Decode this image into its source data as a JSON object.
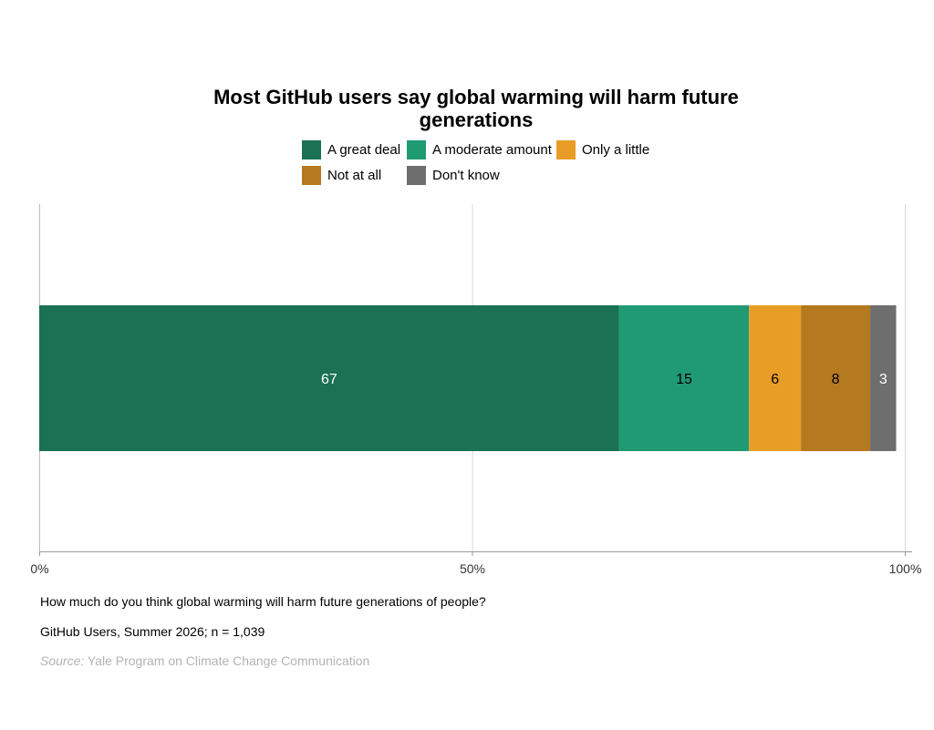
{
  "chart_data": {
    "type": "bar",
    "orientation": "horizontal",
    "stacked": true,
    "title": "Most GitHub users say global warming will harm future generations",
    "series": [
      {
        "name": "A great deal",
        "values": [
          67
        ],
        "color": "#1a7154",
        "label_color": "#ffffff"
      },
      {
        "name": "A moderate amount",
        "values": [
          15
        ],
        "color": "#1f9a72",
        "label_color": "#000000"
      },
      {
        "name": "Only a little",
        "values": [
          6
        ],
        "color": "#e89e26",
        "label_color": "#000000"
      },
      {
        "name": "Not at all",
        "values": [
          8
        ],
        "color": "#b5791f",
        "label_color": "#000000"
      },
      {
        "name": "Don't know",
        "values": [
          3
        ],
        "color": "#6e6e6e",
        "label_color": "#ffffff"
      }
    ],
    "x_axis": {
      "range": [
        0,
        100
      ],
      "ticks": [
        0,
        50,
        100
      ],
      "tick_labels": [
        "0%",
        "50%",
        "100%"
      ]
    },
    "grid": "vertical major lines",
    "legend_position": "top"
  },
  "captions": {
    "question": "How much do you think global warming will harm future generations of people?",
    "sample": "GitHub Users, Summer 2026; n = 1,039",
    "source_label": "Source:",
    "source_text": " Yale Program on Climate Change Communication"
  }
}
